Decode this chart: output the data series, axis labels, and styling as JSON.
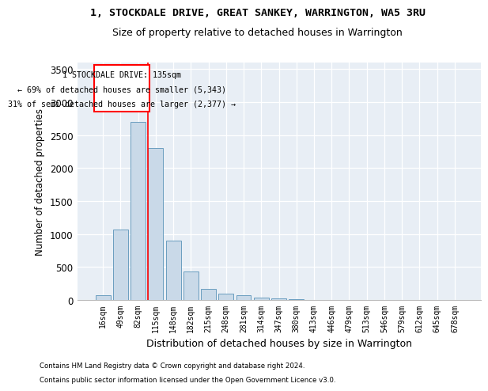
{
  "title": "1, STOCKDALE DRIVE, GREAT SANKEY, WARRINGTON, WA5 3RU",
  "subtitle": "Size of property relative to detached houses in Warrington",
  "xlabel": "Distribution of detached houses by size in Warrington",
  "ylabel": "Number of detached properties",
  "bar_color": "#c9d9e8",
  "bar_edge_color": "#6a9dbf",
  "background_color": "#e8eef5",
  "categories": [
    "16sqm",
    "49sqm",
    "82sqm",
    "115sqm",
    "148sqm",
    "182sqm",
    "215sqm",
    "248sqm",
    "281sqm",
    "314sqm",
    "347sqm",
    "380sqm",
    "413sqm",
    "446sqm",
    "479sqm",
    "513sqm",
    "546sqm",
    "579sqm",
    "612sqm",
    "645sqm",
    "678sqm"
  ],
  "values": [
    70,
    1070,
    2700,
    2300,
    900,
    430,
    165,
    100,
    70,
    35,
    20,
    10,
    5,
    3,
    2,
    1,
    1,
    0,
    0,
    0,
    0
  ],
  "ylim": [
    0,
    3600
  ],
  "yticks": [
    0,
    500,
    1000,
    1500,
    2000,
    2500,
    3000,
    3500
  ],
  "annotation_title": "1 STOCKDALE DRIVE: 135sqm",
  "annotation_line1": "← 69% of detached houses are smaller (5,343)",
  "annotation_line2": "31% of semi-detached houses are larger (2,377) →",
  "red_line_bin_index": 3,
  "footer1": "Contains HM Land Registry data © Crown copyright and database right 2024.",
  "footer2": "Contains public sector information licensed under the Open Government Licence v3.0."
}
